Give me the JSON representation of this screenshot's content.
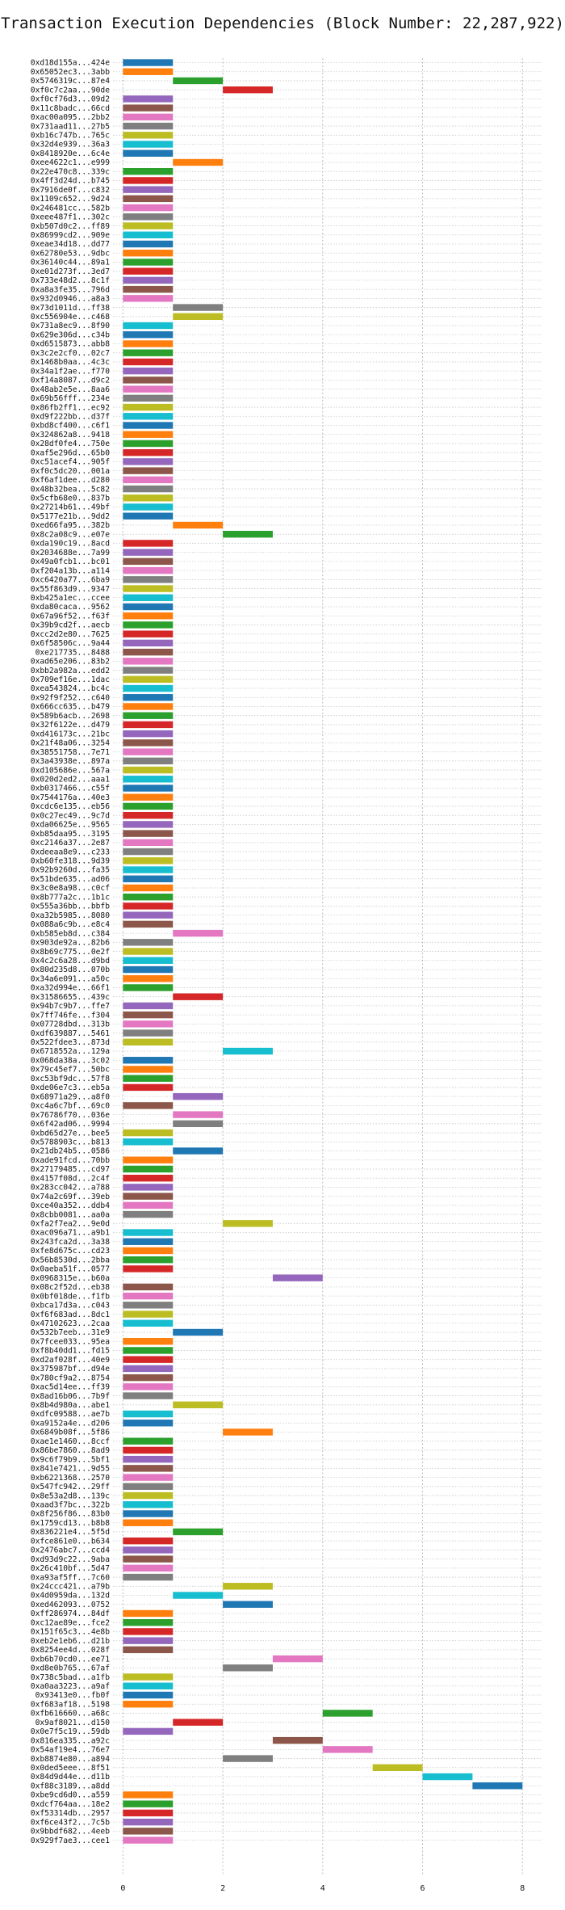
{
  "chart_data": {
    "type": "bar",
    "orientation": "horizontal",
    "title": "Transaction Execution Dependencies (Block Number: 22,287,922)",
    "xlabel": "",
    "ylabel": "",
    "xlim": [
      -0.2,
      8.4
    ],
    "xticks": [
      0,
      2,
      4,
      6,
      8
    ],
    "grid": true,
    "grid_style": "dotted",
    "palette": [
      "#1f77b4",
      "#ff7f0e",
      "#2ca02c",
      "#d62728",
      "#9467bd",
      "#8c564b",
      "#e377c2",
      "#7f7f7f",
      "#bcbd22",
      "#17becf"
    ],
    "categories": [
      "0xd18d155a...424e",
      "0x65052ec3...3abb",
      "0x5746319c...87e4",
      "0xf0c7c2aa...90de",
      "0xf0cf76d3...09d2",
      "0x11c8badc...66cd",
      "0xac00a095...2bb2",
      "0x731aad11...27b5",
      "0xb16c747b...765c",
      "0x32d4e939...36a3",
      "0x8418920e...6c4e",
      "0xee4622c1...e999",
      "0x22e470c8...339c",
      "0x4ff3d24d...b745",
      "0x7916de0f...c832",
      "0x1109c652...9d24",
      "0x246481cc...582b",
      "0xeee487f1...302c",
      "0xb507d0c2...ff89",
      "0x86999cd2...909e",
      "0xeae34d18...dd77",
      "0x62780e53...9dbc",
      "0x36140c44...89a1",
      "0xe01d273f...3ed7",
      "0x733e48d2...8c1f",
      "0xa8a3fe35...796d",
      "0x932d0946...a8a3",
      "0x73d1011d...ff38",
      "0xc556904e...c468",
      "0x731a8ec9...8f90",
      "0x629e306d...c34b",
      "0xd6515873...abb8",
      "0x3c2e2cf0...02c7",
      "0x1468b0aa...4c3c",
      "0x34a1f2ae...f770",
      "0xf14a8087...d9c2",
      "0x48ab2e5e...8aa6",
      "0x69b56fff...234e",
      "0x86fb2ff1...ec92",
      "0xd9f222bb...d37f",
      "0xbd8cf400...c6f1",
      "0x324862a8...9418",
      "0x28df0fe4...750e",
      "0xaf5e296d...65b0",
      "0xc51acef4...905f",
      "0xf0c5dc20...001a",
      "0xf6af1dee...d280",
      "0x48b32bea...5c82",
      "0x5cfb68e0...837b",
      "0x27214b61...49bf",
      "0x5177e21b...9dd2",
      "0xed66fa95...382b",
      "0x8c2a08c9...e07e",
      "0xda190c19...8acd",
      "0x2034688e...7a99",
      "0x49a0fcb1...bc01",
      "0xf204a13b...a114",
      "0xc6420a77...6ba9",
      "0x55f863d9...9347",
      "0xb425a1ec...ccee",
      "0xda80caca...9562",
      "0x67a96f52...f63f",
      "0x39b9cd2f...aecb",
      "0xcc2d2e80...7625",
      "0x6f58506c...9a44",
      "0xe217735...8488",
      "0xad65e206...83b2",
      "0xbb2a982a...edd2",
      "0x709ef16e...1dac",
      "0xea543824...bc4c",
      "0x92f9f252...c640",
      "0x666cc635...b479",
      "0x589b6acb...2698",
      "0x32f6122e...d479",
      "0xd416173c...21bc",
      "0x21f48a06...3254",
      "0x38551758...7e71",
      "0x3a43938e...897a",
      "0xd105686e...567a",
      "0x020d2ed2...aaa1",
      "0xb0317466...c55f",
      "0x7544176a...40e3",
      "0xcdc6e135...eb56",
      "0x0c27ec49...9c7d",
      "0xda06625e...9565",
      "0xb85daa95...3195",
      "0xc2146a37...2e87",
      "0xdeeaa8e9...c233",
      "0xb60fe318...9d39",
      "0x92b9260d...fa35",
      "0x51bde635...ad06",
      "0x3c0e8a98...c0cf",
      "0x8b777a2c...1b1c",
      "0x555a36bb...bbfb",
      "0xa32b5985...8080",
      "0x088a6c9b...e8c4",
      "0xb585eb8d...c384",
      "0x903de92a...82b6",
      "0x8b69c775...0e2f",
      "0x4c2c6a28...d9bd",
      "0x80d235d8...070b",
      "0x34a6e091...a50c",
      "0xa32d994e...66f1",
      "0x31586655...439c",
      "0x94b7c9b7...ffe7",
      "0x7ff746fe...f304",
      "0x07728dbd...313b",
      "0xdf639887...5461",
      "0x522fdee3...873d",
      "0x6718552a...129a",
      "0x068da38a...3c02",
      "0x79c45ef7...50bc",
      "0xc53bf9dc...57f8",
      "0xde06e7c3...eb5a",
      "0x68971a29...a8f0",
      "0xc4a6c7bf...69c0",
      "0x76786f70...036e",
      "0x6f42ad06...9994",
      "0xbd65d27e...bee5",
      "0x5788903c...b813",
      "0x21db24b5...0586",
      "0xade91fcd...70bb",
      "0x27179485...cd97",
      "0x4157f08d...2c4f",
      "0x283cc042...a788",
      "0x74a2c69f...39eb",
      "0xce40a352...ddb4",
      "0x8cbb0081...aa0a",
      "0xfa2f7ea2...9e0d",
      "0xac096a71...a9b1",
      "0x243fca2d...3a38",
      "0xfe8d675c...cd23",
      "0x56b8530d...2bba",
      "0x0aeba51f...0577",
      "0x0968315e...b60a",
      "0x08c2f52d...eb38",
      "0x0bf018de...f1fb",
      "0xbca17d3a...c043",
      "0xf6f683ad...8dc1",
      "0x47102623...2caa",
      "0x532b7eeb...31e9",
      "0x7fcee033...95ea",
      "0xf8b40dd1...fd15",
      "0xd2af028f...40e9",
      "0x375987bf...d94e",
      "0x780cf9a2...8754",
      "0xac5d14ee...ff39",
      "0x8ad16b06...7b9f",
      "0x8b4d980a...abe1",
      "0xdfc09588...ae7b",
      "0xa9152a4e...d206",
      "0x6849b08f...5f86",
      "0xae1e1460...8ccf",
      "0x86be7860...8ad9",
      "0x9c6f79b9...5bf1",
      "0x841e7421...9d55",
      "0xb6221368...2570",
      "0x547fc942...29ff",
      "0x8e53a2d8...139c",
      "0xaad3f7bc...322b",
      "0x8f256f86...83b0",
      "0x1759cd13...b8b8",
      "0x836221e4...5f5d",
      "0xfce861e0...b634",
      "0x2476abc7...ccd4",
      "0xd93d9c22...9aba",
      "0x26c410bf...5d47",
      "0xa93af5ff...7c60",
      "0x24ccc421...a79b",
      "0x4d0959da...132d",
      "0xed462093...0752",
      "0xff286974...84df",
      "0xc12ae89e...fce2",
      "0x151f65c3...4e8b",
      "0xeb2e1eb6...d21b",
      "0x8254ee4d...028f",
      "0xb6b70cd0...ee71",
      "0xd8e0b765...67af",
      "0x738c5bad...a1fb",
      "0xa0aa3223...a9af",
      "0x93413e0...fb0f",
      "0xf683af18...5198",
      "0xfb616660...a68c",
      "0x9af8021...d150",
      "0x0e7f5c19...59db",
      "0x816ea335...a92c",
      "0x54af19e4...76e7",
      "0xb8874e80...a894",
      "0x0ded5eee...8f51",
      "0x84d9d44e...d11b",
      "0xf88c3189...a8dd",
      "0xbe9cd6d0...a559",
      "0xdcf764aa...18e2",
      "0xf53314db...2957",
      "0xf6ce43f2...7c5b",
      "0x9bbdf682...4eeb",
      "0x929f7ae3...cee1"
    ],
    "series": [
      {
        "start": [
          0,
          0,
          1,
          2,
          0,
          0,
          0,
          0,
          0,
          0,
          0,
          1,
          0,
          0,
          0,
          0,
          0,
          0,
          0,
          0,
          0,
          0,
          0,
          0,
          0,
          0,
          0,
          1,
          1,
          0,
          0,
          0,
          0,
          0,
          0,
          0,
          0,
          0,
          0,
          0,
          0,
          0,
          0,
          0,
          0,
          0,
          0,
          0,
          0,
          0,
          0,
          1,
          2,
          0,
          0,
          0,
          0,
          0,
          0,
          0,
          0,
          0,
          0,
          0,
          0,
          0,
          0,
          0,
          0,
          0,
          0,
          0,
          0,
          0,
          0,
          0,
          0,
          0,
          0,
          0,
          0,
          0,
          0,
          0,
          0,
          0,
          0,
          0,
          0,
          0,
          0,
          0,
          0,
          0,
          0,
          0,
          1,
          0,
          0,
          0,
          0,
          0,
          0,
          1,
          0,
          0,
          0,
          0,
          0,
          2,
          0,
          0,
          0,
          0,
          1,
          0,
          1,
          1,
          0,
          0,
          1,
          0,
          0,
          0,
          0,
          0,
          0,
          0,
          2,
          0,
          0,
          0,
          0,
          0,
          3,
          0,
          0,
          0,
          0,
          0,
          1,
          0,
          0,
          0,
          0,
          0,
          0,
          0,
          1,
          0,
          0,
          2,
          0,
          0,
          0,
          0,
          0,
          0,
          0,
          0,
          0,
          0,
          1,
          0,
          0,
          0,
          0,
          0,
          2,
          1,
          2,
          0,
          0,
          0,
          0,
          0,
          3,
          2,
          0,
          0,
          0,
          0,
          4,
          1,
          0,
          3,
          4,
          2,
          5,
          6,
          7,
          0,
          0,
          0,
          0,
          0,
          0
        ],
        "values": [
          1,
          1,
          1,
          1,
          1,
          1,
          1,
          1,
          1,
          1,
          1,
          1,
          1,
          1,
          1,
          1,
          1,
          1,
          1,
          1,
          1,
          1,
          1,
          1,
          1,
          1,
          1,
          1,
          1,
          1,
          1,
          1,
          1,
          1,
          1,
          1,
          1,
          1,
          1,
          1,
          1,
          1,
          1,
          1,
          1,
          1,
          1,
          1,
          1,
          1,
          1,
          1,
          1,
          1,
          1,
          1,
          1,
          1,
          1,
          1,
          1,
          1,
          1,
          1,
          1,
          1,
          1,
          1,
          1,
          1,
          1,
          1,
          1,
          1,
          1,
          1,
          1,
          1,
          1,
          1,
          1,
          1,
          1,
          1,
          1,
          1,
          1,
          1,
          1,
          1,
          1,
          1,
          1,
          1,
          1,
          1,
          1,
          1,
          1,
          1,
          1,
          1,
          1,
          1,
          1,
          1,
          1,
          1,
          1,
          1,
          1,
          1,
          1,
          1,
          1,
          1,
          1,
          1,
          1,
          1,
          1,
          1,
          1,
          1,
          1,
          1,
          1,
          1,
          1,
          1,
          1,
          1,
          1,
          1,
          1,
          1,
          1,
          1,
          1,
          1,
          1,
          1,
          1,
          1,
          1,
          1,
          1,
          1,
          1,
          1,
          1,
          1,
          1,
          1,
          1,
          1,
          1,
          1,
          1,
          1,
          1,
          1,
          1,
          1,
          1,
          1,
          1,
          1,
          1,
          1,
          1,
          1,
          1,
          1,
          1,
          1,
          1,
          1,
          1,
          1,
          1,
          1,
          1,
          1,
          1,
          1,
          1,
          1,
          1,
          1,
          1,
          1,
          1,
          1,
          1,
          1,
          1
        ]
      }
    ]
  }
}
